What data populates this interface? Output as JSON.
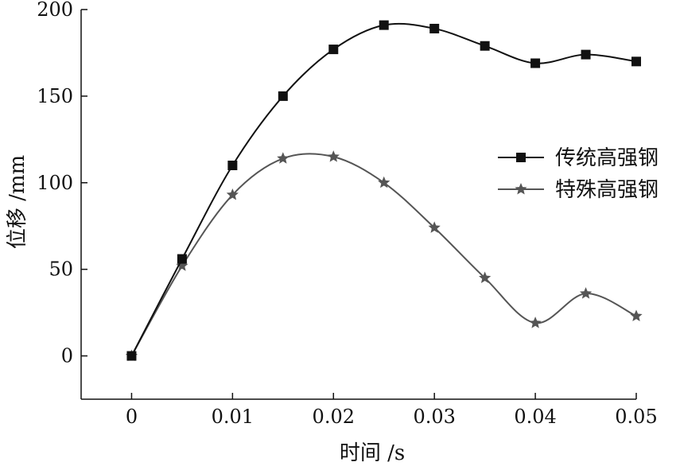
{
  "chart_data": {
    "type": "line",
    "xlabel": "时间 /s",
    "ylabel": "位移 /mm",
    "xlim": [
      -0.005,
      0.05
    ],
    "ylim": [
      -25,
      200
    ],
    "x_ticks": [
      0,
      0.01,
      0.02,
      0.03,
      0.04,
      0.05
    ],
    "x_tick_labels": [
      "0",
      "0.01",
      "0.02",
      "0.03",
      "0.04",
      "0.05"
    ],
    "y_ticks": [
      0,
      50,
      100,
      150,
      200
    ],
    "y_tick_labels": [
      "0",
      "50",
      "100",
      "150",
      "200"
    ],
    "grid": false,
    "legend_position": "right",
    "x": [
      0,
      0.005,
      0.01,
      0.015,
      0.02,
      0.025,
      0.03,
      0.035,
      0.04,
      0.045,
      0.05
    ],
    "series": [
      {
        "name": "传统高强钢",
        "marker": "square",
        "color": "#111111",
        "values": [
          0,
          56,
          110,
          150,
          177,
          191,
          189,
          179,
          169,
          174,
          170
        ]
      },
      {
        "name": "特殊高强钢",
        "marker": "star",
        "color": "#555555",
        "values": [
          0,
          52,
          93,
          114,
          115,
          100,
          74,
          45,
          19,
          36,
          23
        ]
      }
    ]
  }
}
